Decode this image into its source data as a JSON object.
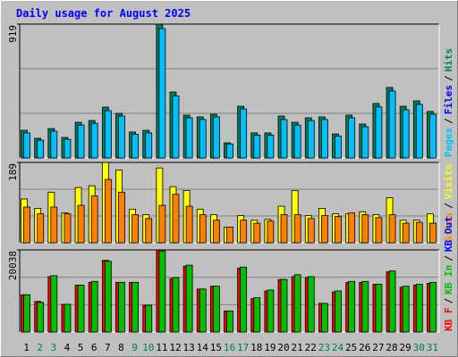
{
  "chart_data": [
    {
      "type": "bar",
      "title": "Daily usage for August 2025",
      "ylim": [
        0,
        919
      ],
      "yticks": [
        919
      ],
      "series": [
        {
          "name": "Hits",
          "color": "#00805c",
          "values": [
            190,
            135,
            202,
            141,
            245,
            257,
            349,
            306,
            178,
            190,
            919,
            453,
            294,
            282,
            300,
            104,
            355,
            172,
            172,
            288,
            245,
            276,
            282,
            165,
            294,
            233,
            374,
            484,
            355,
            392,
            319
          ]
        },
        {
          "name": "Pages",
          "color": "#00c0ff",
          "values": [
            172,
            122,
            184,
            128,
            226,
            238,
            325,
            288,
            163,
            172,
            888,
            426,
            276,
            264,
            282,
            96,
            337,
            157,
            157,
            264,
            226,
            257,
            264,
            151,
            276,
            214,
            350,
            460,
            331,
            368,
            300
          ]
        }
      ],
      "other_legend_entries": [
        {
          "name": "Files",
          "color": "#0000ff"
        }
      ],
      "legend_separator": "/"
    },
    {
      "type": "bar",
      "ylim": [
        0,
        189
      ],
      "yticks": [
        189
      ],
      "series": [
        {
          "name": "Visits",
          "color": "#ffff00",
          "values": [
            103,
            81,
            119,
            70,
            130,
            134,
            189,
            171,
            79,
            66,
            176,
            132,
            123,
            79,
            66,
            37,
            64,
            53,
            55,
            86,
            123,
            64,
            81,
            68,
            68,
            73,
            66,
            106,
            53,
            53,
            68
          ]
        },
        {
          "name": "Sites",
          "color": "#ff8000",
          "values": [
            84,
            68,
            84,
            68,
            88,
            110,
            149,
            119,
            66,
            57,
            88,
            114,
            86,
            66,
            53,
            37,
            53,
            46,
            51,
            66,
            66,
            57,
            64,
            62,
            70,
            66,
            59,
            66,
            46,
            48,
            46
          ]
        }
      ],
      "legend_separator": "/"
    },
    {
      "type": "bar",
      "ylim": [
        0,
        20038
      ],
      "yticks": [
        20038
      ],
      "categories": [
        "1",
        "2",
        "3",
        "4",
        "5",
        "6",
        "7",
        "8",
        "9",
        "10",
        "11",
        "12",
        "13",
        "14",
        "15",
        "16",
        "17",
        "18",
        "19",
        "20",
        "21",
        "22",
        "23",
        "24",
        "25",
        "26",
        "27",
        "28",
        "29",
        "30",
        "31"
      ],
      "category_colors": [
        "#000000",
        "#008040",
        "#008040",
        "#000000",
        "#000000",
        "#000000",
        "#000000",
        "#000000",
        "#008040",
        "#008040",
        "#000000",
        "#000000",
        "#000000",
        "#000000",
        "#000000",
        "#008040",
        "#008040",
        "#000000",
        "#000000",
        "#000000",
        "#000000",
        "#000000",
        "#008040",
        "#008040",
        "#000000",
        "#000000",
        "#000000",
        "#000000",
        "#000000",
        "#008040",
        "#008040"
      ],
      "series": [
        {
          "name": "KB F",
          "color": "#ff0000",
          "values": [
            9090,
            7460,
            13510,
            6760,
            11420,
            12120,
            17480,
            12120,
            12120,
            6520,
            20038,
            13050,
            16080,
            10490,
            11180,
            5130,
            15610,
            8160,
            10020,
            12820,
            13510,
            13280,
            6990,
            9790,
            12120,
            12120,
            11650,
            14680,
            10950,
            11420,
            11880
          ]
        },
        {
          "name": "KB In",
          "color": "#00c000",
          "values": [
            9090,
            7230,
            13750,
            6760,
            11420,
            12350,
            17250,
            12120,
            12120,
            6520,
            19800,
            13280,
            16310,
            10490,
            11180,
            5130,
            15840,
            8390,
            10250,
            12820,
            13980,
            13510,
            6990,
            10020,
            12350,
            12350,
            11650,
            14910,
            11180,
            11650,
            12120
          ]
        }
      ],
      "other_legend_entries": [
        {
          "name": "KB Out",
          "color": "#0000ff"
        }
      ],
      "legend_separator": "/"
    }
  ]
}
